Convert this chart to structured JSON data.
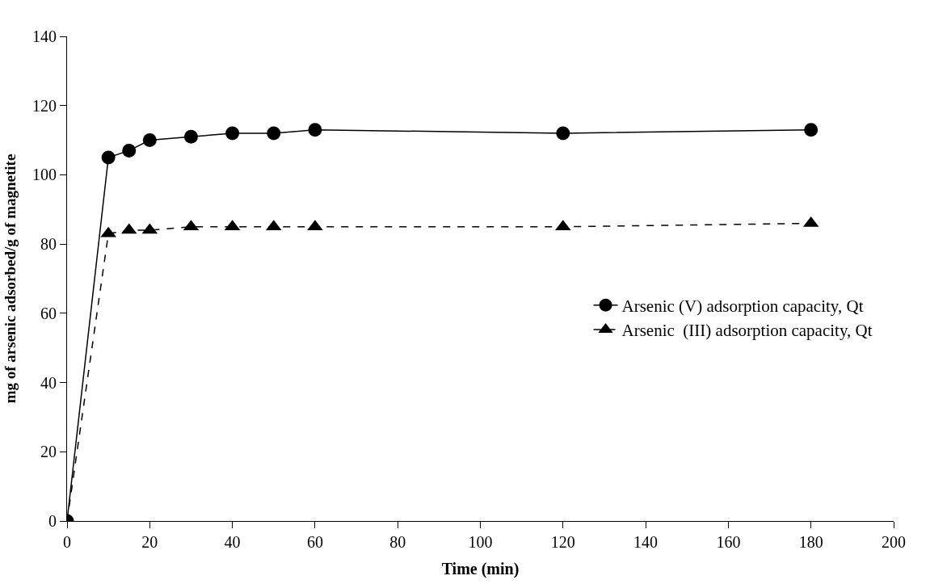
{
  "chart_data": {
    "type": "line",
    "xlabel": "Time (min)",
    "ylabel": "mg of arsenic adsorbed/g of magnetite",
    "x": [
      0,
      10,
      15,
      20,
      30,
      40,
      50,
      60,
      120,
      180
    ],
    "series": [
      {
        "name": "Arsenic (V) adsorption capacity, Qt",
        "color": "#000000",
        "marker": "circle",
        "line_style": "solid",
        "values": [
          0,
          105,
          107,
          110,
          111,
          112,
          112,
          113,
          112,
          113
        ]
      },
      {
        "name": "Arsenic  (III) adsorption capacity, Qt",
        "color": "#000000",
        "marker": "triangle",
        "line_style": "dashed",
        "values": [
          0,
          83,
          84,
          84,
          85,
          85,
          85,
          85,
          85,
          86
        ]
      }
    ],
    "xlim": [
      0,
      200
    ],
    "xticks": [
      0,
      20,
      40,
      60,
      80,
      100,
      120,
      140,
      160,
      180,
      200
    ],
    "ylim": [
      0,
      140
    ],
    "yticks": [
      0,
      20,
      40,
      60,
      80,
      100,
      120,
      140
    ],
    "legend": "right"
  }
}
